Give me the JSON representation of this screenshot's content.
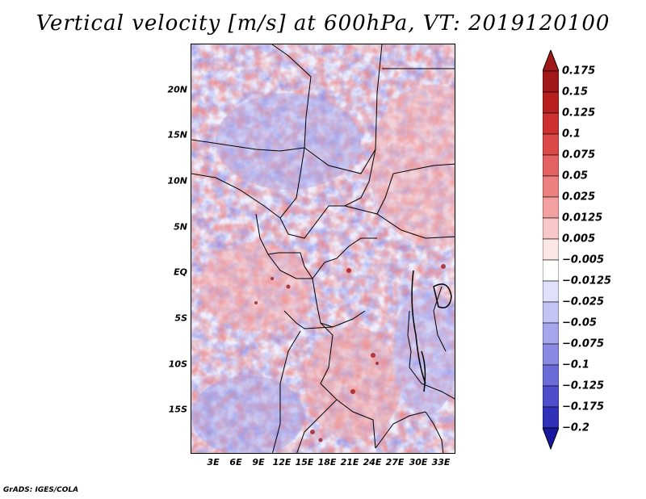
{
  "title": "Vertical velocity [m/s] at 600hPa, VT: 2019120100",
  "map": {
    "lat_labels": [
      "20N",
      "15N",
      "10N",
      "5N",
      "EQ",
      "5S",
      "10S",
      "15S"
    ],
    "lat_values": [
      20,
      15,
      10,
      5,
      0,
      -5,
      -10,
      -15
    ],
    "lat_range": [
      -20,
      25
    ],
    "lon_labels": [
      "3E",
      "6E",
      "9E",
      "12E",
      "15E",
      "18E",
      "21E",
      "24E",
      "27E",
      "30E",
      "33E"
    ],
    "lon_values": [
      3,
      6,
      9,
      12,
      15,
      18,
      21,
      24,
      27,
      30,
      33
    ],
    "lon_range": [
      0,
      35
    ]
  },
  "colorbar": {
    "labels": [
      "0.175",
      "0.15",
      "0.125",
      "0.1",
      "0.075",
      "0.05",
      "0.025",
      "0.0125",
      "0.005",
      "−0.005",
      "−0.0125",
      "−0.025",
      "−0.05",
      "−0.075",
      "−0.1",
      "−0.125",
      "−0.175",
      "−0.2"
    ],
    "colors": [
      "#a01818",
      "#b82020",
      "#cc3030",
      "#dc4848",
      "#e46262",
      "#ec8080",
      "#f4a0a0",
      "#f8c8c8",
      "#fce6e6",
      "#ffffff",
      "#e0e0fa",
      "#c4c4f4",
      "#a6a6ec",
      "#8a8ae2",
      "#6c6cd8",
      "#4e4ecc",
      "#3030b8",
      "#1818a0"
    ]
  },
  "footer": "GrADS: IGES/COLA"
}
